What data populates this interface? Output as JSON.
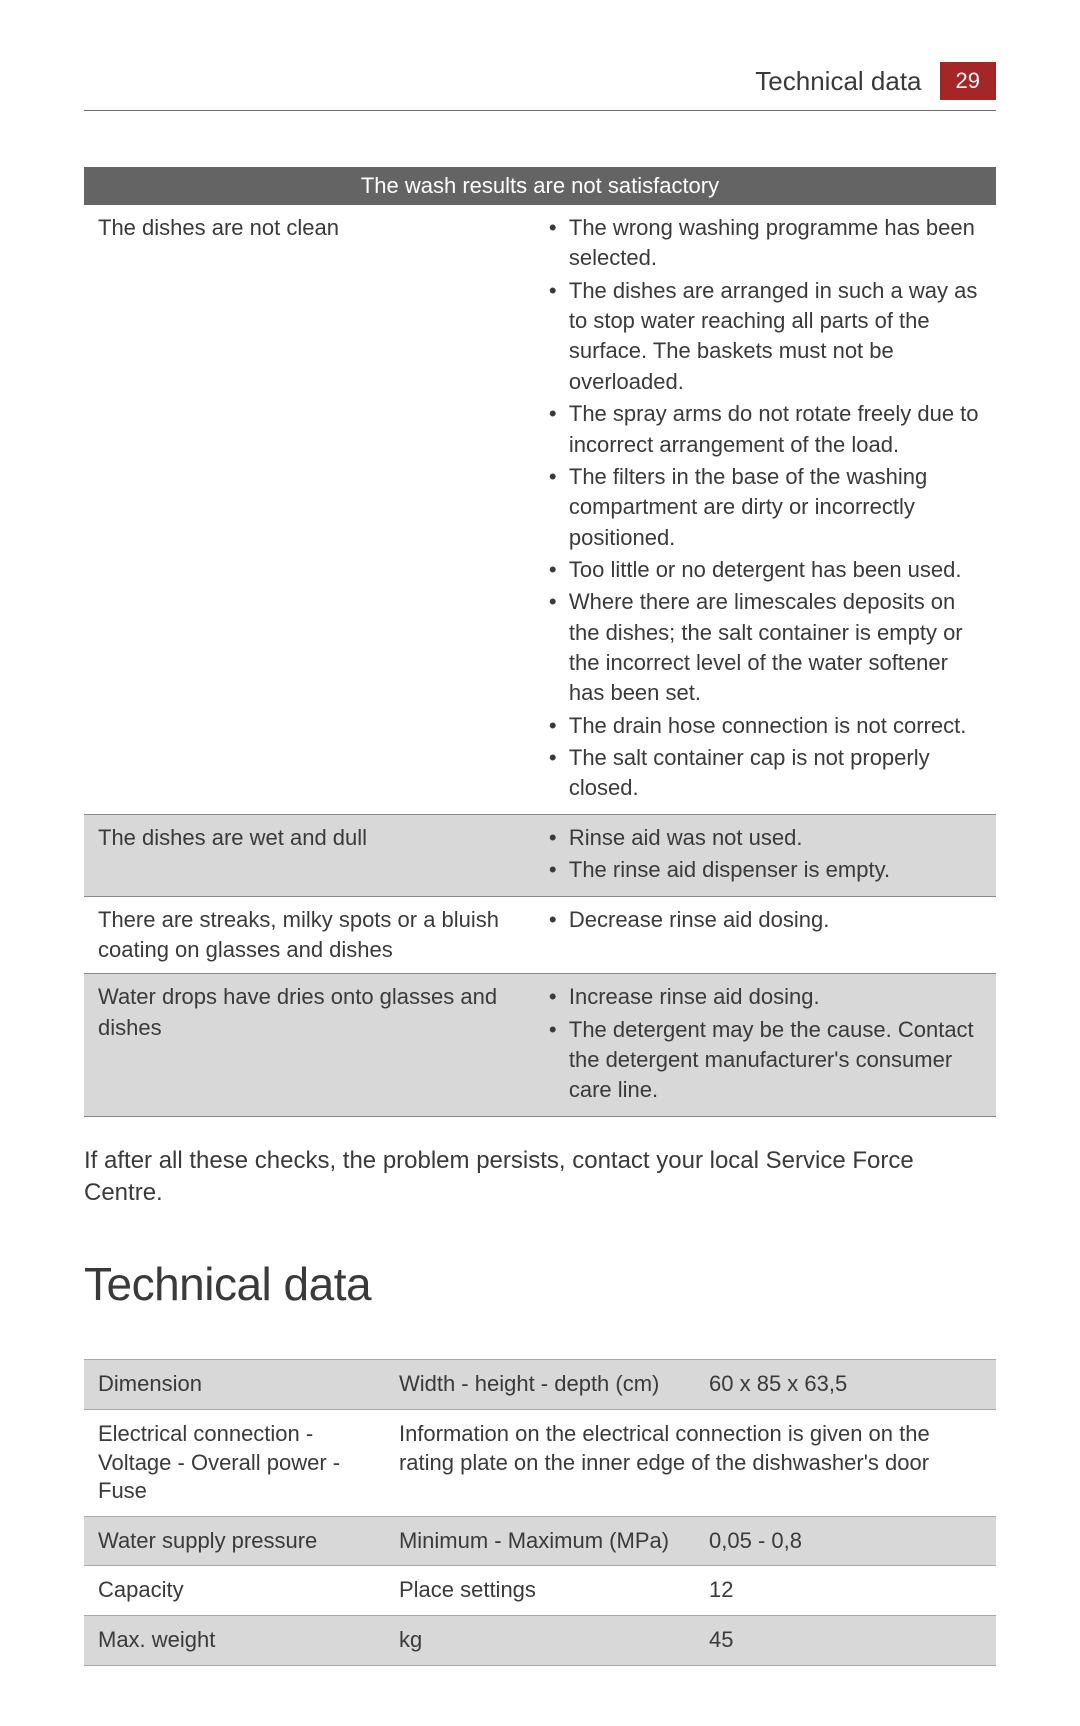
{
  "header": {
    "title": "Technical data",
    "page_number": "29",
    "badge_bg": "#a42626",
    "badge_fg": "#ffffff"
  },
  "troubleshoot": {
    "header": "The wash results are not satisfactory",
    "header_bg": "#646464",
    "header_fg": "#ffffff",
    "rows": [
      {
        "shade": "white",
        "problem": "The dishes are not clean",
        "causes": [
          "The wrong washing programme has been selected.",
          "The dishes are arranged in such a way as to stop water reaching all parts of the surface. The baskets must not be overloaded.",
          "The spray arms do not rotate freely due to incorrect arrangement of the load.",
          "The filters in the base of the washing compartment are dirty or incorrectly positioned.",
          "Too little or no detergent has been used.",
          "Where there are limescales deposits on the dishes; the salt container is empty or the incorrect level of the water softener has been set.",
          "The drain hose connection is not correct.",
          "The salt container cap is not properly closed."
        ]
      },
      {
        "shade": "gray",
        "problem": "The dishes are wet and dull",
        "causes": [
          "Rinse aid was not used.",
          "The rinse aid dispenser is empty."
        ]
      },
      {
        "shade": "white",
        "problem": "There are streaks, milky spots or a bluish coating on glasses and dishes",
        "causes": [
          "Decrease rinse aid dosing."
        ]
      },
      {
        "shade": "gray",
        "problem": "Water drops have dries onto glasses and dishes",
        "causes": [
          "Increase rinse aid dosing.",
          "The detergent may be the cause. Contact the detergent manufacturer's consumer care line."
        ]
      }
    ]
  },
  "note": "If after all these checks, the problem persists, contact your local Service Force Centre.",
  "section_heading": "Technical data",
  "tech": {
    "rows": [
      {
        "shade": "gray",
        "c1": "Dimension",
        "c2": "Width - height - depth (cm)",
        "c3": "60 x 85 x 63,5",
        "span": false
      },
      {
        "shade": "white",
        "c1": "Electrical connection - Voltage - Overall power - Fuse",
        "c2": "Information on the electrical connection is given on the rating plate on the inner edge of the dishwasher's door",
        "c3": "",
        "span": true
      },
      {
        "shade": "gray",
        "c1": "Water supply pressure",
        "c2": "Minimum - Maximum (MPa)",
        "c3": "0,05 - 0,8",
        "span": false
      },
      {
        "shade": "white",
        "c1": "Capacity",
        "c2": "Place settings",
        "c3": "12",
        "span": false
      },
      {
        "shade": "gray",
        "c1": "Max. weight",
        "c2": "kg",
        "c3": "45",
        "span": false
      }
    ]
  }
}
